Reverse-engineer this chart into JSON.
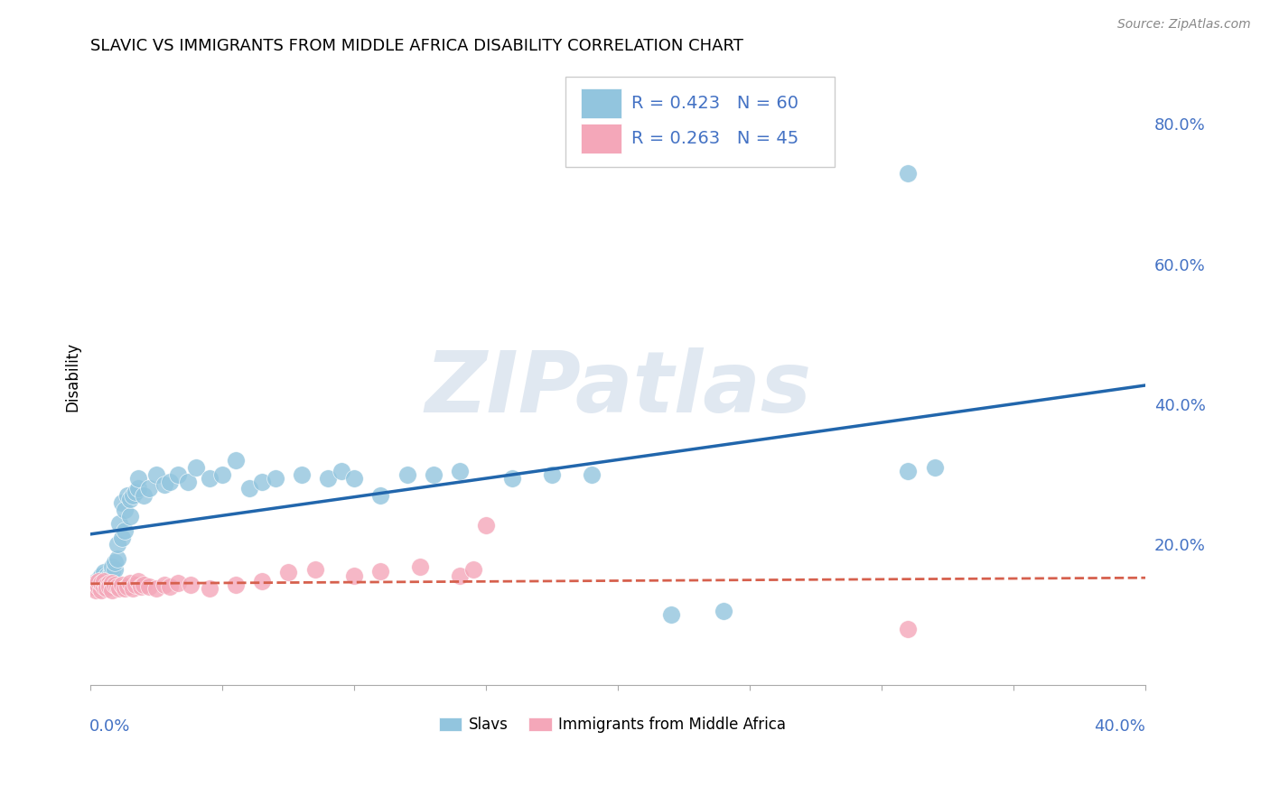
{
  "title": "SLAVIC VS IMMIGRANTS FROM MIDDLE AFRICA DISABILITY CORRELATION CHART",
  "source": "Source: ZipAtlas.com",
  "ylabel": "Disability",
  "legend_r1": "R = 0.423",
  "legend_n1": "N = 60",
  "legend_r2": "R = 0.263",
  "legend_n2": "N = 45",
  "slavs_color": "#92c5de",
  "immigrants_color": "#f4a7b9",
  "line_slavs_color": "#2166ac",
  "line_immigrants_color": "#d6604d",
  "watermark_color": "#ccd9e8",
  "xlim": [
    0.0,
    0.4
  ],
  "ylim": [
    0.0,
    0.88
  ],
  "yticks": [
    0.2,
    0.4,
    0.6,
    0.8
  ],
  "ytick_labels": [
    "20.0%",
    "40.0%",
    "60.0%",
    "80.0%"
  ],
  "slavs_x": [
    0.001,
    0.002,
    0.003,
    0.003,
    0.004,
    0.004,
    0.005,
    0.005,
    0.006,
    0.006,
    0.007,
    0.007,
    0.008,
    0.008,
    0.009,
    0.009,
    0.01,
    0.01,
    0.011,
    0.012,
    0.012,
    0.013,
    0.013,
    0.014,
    0.015,
    0.015,
    0.016,
    0.017,
    0.018,
    0.018,
    0.02,
    0.022,
    0.025,
    0.028,
    0.03,
    0.033,
    0.037,
    0.04,
    0.045,
    0.05,
    0.055,
    0.06,
    0.065,
    0.07,
    0.08,
    0.09,
    0.095,
    0.1,
    0.11,
    0.12,
    0.13,
    0.14,
    0.16,
    0.175,
    0.19,
    0.22,
    0.24,
    0.31,
    0.32,
    0.31
  ],
  "slavs_y": [
    0.145,
    0.145,
    0.15,
    0.14,
    0.148,
    0.155,
    0.145,
    0.16,
    0.15,
    0.155,
    0.155,
    0.148,
    0.162,
    0.168,
    0.165,
    0.175,
    0.18,
    0.2,
    0.23,
    0.26,
    0.21,
    0.22,
    0.25,
    0.27,
    0.24,
    0.265,
    0.27,
    0.275,
    0.28,
    0.295,
    0.27,
    0.28,
    0.3,
    0.285,
    0.29,
    0.3,
    0.29,
    0.31,
    0.295,
    0.3,
    0.32,
    0.28,
    0.29,
    0.295,
    0.3,
    0.295,
    0.305,
    0.295,
    0.27,
    0.3,
    0.3,
    0.305,
    0.295,
    0.3,
    0.3,
    0.1,
    0.105,
    0.305,
    0.31,
    0.73
  ],
  "immigrants_x": [
    0.001,
    0.002,
    0.002,
    0.003,
    0.003,
    0.004,
    0.004,
    0.005,
    0.005,
    0.006,
    0.006,
    0.007,
    0.007,
    0.008,
    0.008,
    0.009,
    0.01,
    0.011,
    0.012,
    0.013,
    0.014,
    0.015,
    0.016,
    0.017,
    0.018,
    0.019,
    0.02,
    0.022,
    0.025,
    0.028,
    0.03,
    0.033,
    0.038,
    0.045,
    0.055,
    0.065,
    0.075,
    0.085,
    0.1,
    0.11,
    0.125,
    0.14,
    0.145,
    0.15,
    0.31
  ],
  "immigrants_y": [
    0.14,
    0.135,
    0.145,
    0.14,
    0.148,
    0.135,
    0.145,
    0.14,
    0.148,
    0.142,
    0.138,
    0.145,
    0.14,
    0.145,
    0.135,
    0.142,
    0.14,
    0.138,
    0.142,
    0.138,
    0.14,
    0.145,
    0.138,
    0.142,
    0.148,
    0.14,
    0.142,
    0.14,
    0.138,
    0.142,
    0.14,
    0.145,
    0.142,
    0.138,
    0.142,
    0.148,
    0.16,
    0.165,
    0.155,
    0.162,
    0.168,
    0.155,
    0.165,
    0.228,
    0.08
  ]
}
